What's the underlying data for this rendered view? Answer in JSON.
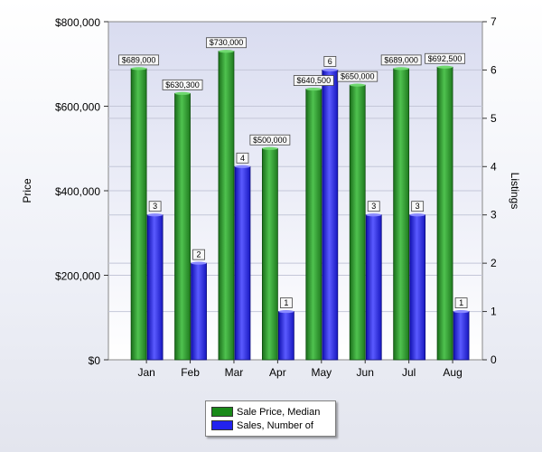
{
  "chart_data": {
    "type": "bar",
    "categories": [
      "Jan",
      "Feb",
      "Mar",
      "Apr",
      "May",
      "Jun",
      "Jul",
      "Aug"
    ],
    "series": [
      {
        "name": "Sale Price, Median",
        "axis": "left",
        "color": "#2a8f2a",
        "values": [
          689000,
          630300,
          730000,
          500000,
          640500,
          650000,
          689000,
          692500
        ],
        "labels": [
          "$689,000",
          "$630,300",
          "$730,000",
          "$500,000",
          "$640,500",
          "$650,000",
          "$689,000",
          "$692,500"
        ]
      },
      {
        "name": "Sales, Number of",
        "axis": "right",
        "color": "#2a2ae8",
        "values": [
          3,
          2,
          4,
          1,
          6,
          3,
          3,
          1
        ],
        "labels": [
          "3",
          "2",
          "4",
          "1",
          "6",
          "3",
          "3",
          "1"
        ]
      }
    ],
    "ylabel": "Price",
    "y2label": "Listings",
    "ylim": [
      0,
      800000
    ],
    "y2lim": [
      0,
      7
    ],
    "yticks": [
      "$0",
      "$200,000",
      "$400,000",
      "$600,000",
      "$800,000"
    ],
    "y2ticks": [
      "0",
      "1",
      "2",
      "3",
      "4",
      "5",
      "6",
      "7"
    ],
    "grid": true,
    "legend_position": "bottom"
  }
}
